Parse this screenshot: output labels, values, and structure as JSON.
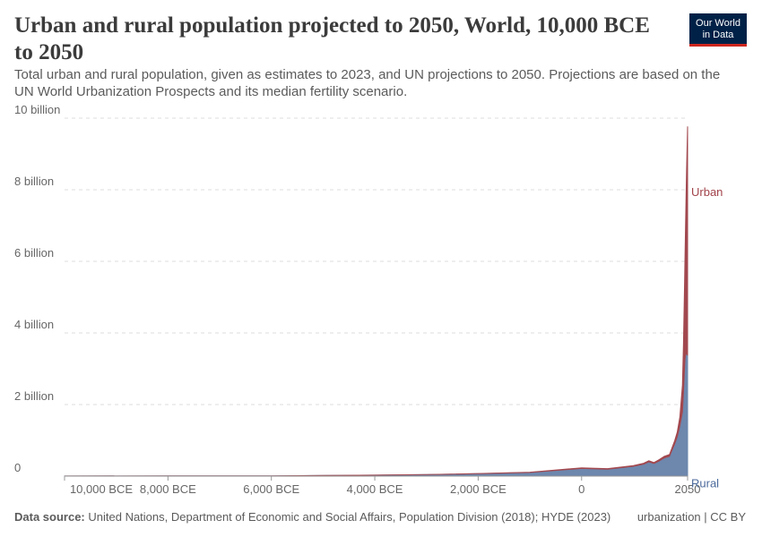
{
  "header": {
    "title": "Urban and rural population projected to 2050, World, 10,000 BCE to 2050",
    "subtitle": "Total urban and rural population, given as estimates to 2023, and UN projections to 2050. Projections are based on the UN World Urbanization Prospects and its median fertility scenario.",
    "logo_line1": "Our World",
    "logo_line2": "in Data"
  },
  "chart_data": {
    "type": "area",
    "stacked": true,
    "grid": "horizontal-dashed",
    "legend": "inline-right",
    "xlim": [
      -10000,
      2050
    ],
    "ylim": [
      0,
      10000000000
    ],
    "x_ticks": [
      {
        "value": -10000,
        "label": "10,000 BCE"
      },
      {
        "value": -8000,
        "label": "8,000 BCE"
      },
      {
        "value": -6000,
        "label": "6,000 BCE"
      },
      {
        "value": -4000,
        "label": "4,000 BCE"
      },
      {
        "value": -2000,
        "label": "2,000 BCE"
      },
      {
        "value": 0,
        "label": "0"
      },
      {
        "value": 2050,
        "label": "2050"
      }
    ],
    "y_ticks": [
      {
        "value": 0,
        "label": "0"
      },
      {
        "value": 2000000000,
        "label": "2 billion"
      },
      {
        "value": 4000000000,
        "label": "4 billion"
      },
      {
        "value": 6000000000,
        "label": "6 billion"
      },
      {
        "value": 8000000000,
        "label": "8 billion"
      },
      {
        "value": 10000000000,
        "label": "10 billion"
      }
    ],
    "x": [
      -10000,
      -8000,
      -6000,
      -5000,
      -4000,
      -3000,
      -2000,
      -1000,
      0,
      500,
      1000,
      1200,
      1300,
      1400,
      1500,
      1600,
      1700,
      1800,
      1850,
      1900,
      1950,
      1970,
      1990,
      2000,
      2010,
      2023,
      2030,
      2050
    ],
    "series": [
      {
        "name": "Rural",
        "color": "#6d87ad",
        "label_color": "#4c6a9c",
        "values": [
          4400000,
          5000000,
          7000000,
          18000000,
          27000000,
          43000000,
          68000000,
          104000000,
          215000000,
          195000000,
          275000000,
          335000000,
          400000000,
          355000000,
          425000000,
          510000000,
          555000000,
          900000000,
          1100000000,
          1400000000,
          1790000000,
          2330000000,
          2990000000,
          3270000000,
          3380000000,
          3420000000,
          3440000000,
          3370000000
        ]
      },
      {
        "name": "Urban",
        "color": "#a2484f",
        "label_color": "#a1434a",
        "values": [
          0,
          0,
          100000,
          200000,
          500000,
          2000000,
          4000000,
          6000000,
          17000000,
          15000000,
          20000000,
          25000000,
          30000000,
          25000000,
          35000000,
          45000000,
          50000000,
          90000000,
          130000000,
          250000000,
          750000000,
          1360000000,
          2290000000,
          2870000000,
          3600000000,
          4600000000,
          5100000000,
          6400000000
        ]
      }
    ]
  },
  "footer": {
    "source_label": "Data source:",
    "source": "United Nations, Department of Economic and Social Affairs, Population Division (2018); HYDE (2023)",
    "license": "urbanization | CC BY"
  }
}
